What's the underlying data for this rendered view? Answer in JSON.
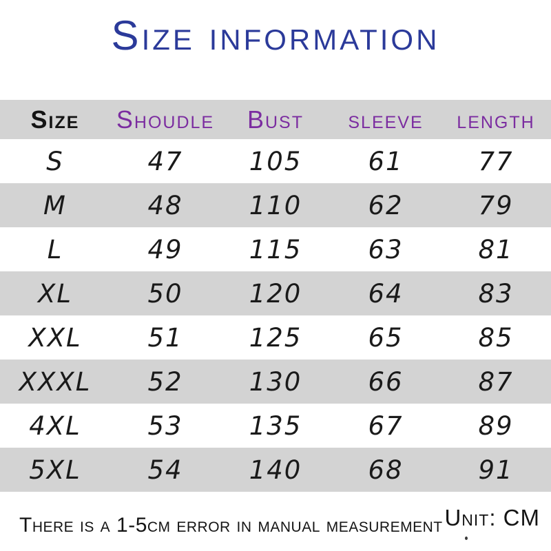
{
  "title": "Size information",
  "colors": {
    "title_blue": "#2b3a9a",
    "header_purple": "#7b2ca0",
    "row_gray": "#d3d3d3",
    "text_black": "#1a1a1a",
    "background": "#ffffff"
  },
  "chart_data": {
    "type": "table",
    "title": "Size information",
    "columns": [
      "Size",
      "Shoudle",
      "Bust",
      "sleeve",
      "length"
    ],
    "rows": [
      [
        "S",
        47,
        105,
        61,
        77
      ],
      [
        "M",
        48,
        110,
        62,
        79
      ],
      [
        "L",
        49,
        115,
        63,
        81
      ],
      [
        "XL",
        50,
        120,
        64,
        83
      ],
      [
        "XXL",
        51,
        125,
        65,
        85
      ],
      [
        "XXXL",
        52,
        130,
        66,
        87
      ],
      [
        "4XL",
        53,
        135,
        67,
        89
      ],
      [
        "5XL",
        54,
        140,
        68,
        91
      ]
    ],
    "unit": "CM",
    "note": "There is a 1-5cm error in manual measurement",
    "layout": {
      "header_background": "#d3d3d3",
      "alternating_rows": true
    }
  },
  "footer": {
    "note": "There is a 1-5cm error in manual measurement",
    "unit_label": "Unit: CM"
  }
}
